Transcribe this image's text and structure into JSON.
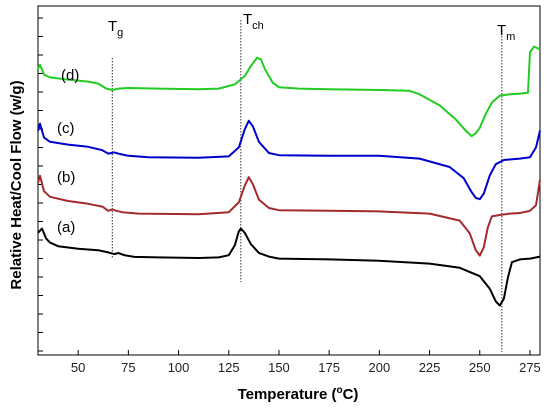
{
  "chart_data": {
    "type": "line",
    "xlabel": "Temperature (°C)",
    "xlabel_main": "Temperature (",
    "xlabel_unit_sup": "o",
    "xlabel_unit_rest": "C)",
    "ylabel": "Relative Heat/Cool Flow (w/g)",
    "xlim": [
      30,
      280
    ],
    "x_ticks": [
      "50",
      "75",
      "100",
      "125",
      "150",
      "175",
      "200",
      "225",
      "250",
      "275"
    ],
    "y_tick_labels": "none",
    "grid": false,
    "annotations": [
      {
        "text": "T",
        "sub": "g",
        "x": 67
      },
      {
        "text": "T",
        "sub": "ch",
        "x": 131
      },
      {
        "text": "T",
        "sub": "m",
        "x": 261
      }
    ],
    "series": [
      {
        "label": "(a)",
        "color": "#000000",
        "points": [
          [
            30,
            0.9
          ],
          [
            32,
            1.05
          ],
          [
            34,
            0.7
          ],
          [
            36,
            0.55
          ],
          [
            40,
            0.42
          ],
          [
            50,
            0.33
          ],
          [
            60,
            0.28
          ],
          [
            65,
            0.2
          ],
          [
            68,
            0.14
          ],
          [
            70,
            0.18
          ],
          [
            73,
            0.1
          ],
          [
            78,
            0.04
          ],
          [
            90,
            0.02
          ],
          [
            110,
            0.0
          ],
          [
            120,
            0.02
          ],
          [
            125,
            0.1
          ],
          [
            128,
            0.45
          ],
          [
            130,
            0.95
          ],
          [
            131,
            1.05
          ],
          [
            133,
            0.9
          ],
          [
            136,
            0.5
          ],
          [
            140,
            0.18
          ],
          [
            145,
            0.05
          ],
          [
            150,
            -0.02
          ],
          [
            175,
            -0.05
          ],
          [
            200,
            -0.1
          ],
          [
            225,
            -0.2
          ],
          [
            240,
            -0.35
          ],
          [
            250,
            -0.65
          ],
          [
            255,
            -1.1
          ],
          [
            258,
            -1.55
          ],
          [
            260,
            -1.7
          ],
          [
            262,
            -1.45
          ],
          [
            264,
            -0.7
          ],
          [
            266,
            -0.15
          ],
          [
            270,
            -0.05
          ],
          [
            275,
            -0.02
          ],
          [
            280,
            0.05
          ]
        ]
      },
      {
        "label": "(b)",
        "color": "#a52a2a",
        "points": [
          [
            30,
            0.9
          ],
          [
            31,
            1.15
          ],
          [
            33,
            0.6
          ],
          [
            36,
            0.4
          ],
          [
            45,
            0.25
          ],
          [
            55,
            0.15
          ],
          [
            62,
            0.05
          ],
          [
            65,
            -0.1
          ],
          [
            67,
            -0.05
          ],
          [
            69,
            -0.1
          ],
          [
            72,
            -0.15
          ],
          [
            80,
            -0.2
          ],
          [
            110,
            -0.22
          ],
          [
            125,
            -0.15
          ],
          [
            130,
            0.2
          ],
          [
            133,
            0.8
          ],
          [
            135,
            1.1
          ],
          [
            137,
            0.85
          ],
          [
            140,
            0.3
          ],
          [
            145,
            0.0
          ],
          [
            150,
            -0.08
          ],
          [
            175,
            -0.1
          ],
          [
            200,
            -0.12
          ],
          [
            225,
            -0.2
          ],
          [
            240,
            -0.45
          ],
          [
            245,
            -0.9
          ],
          [
            248,
            -1.5
          ],
          [
            250,
            -1.7
          ],
          [
            252,
            -1.4
          ],
          [
            254,
            -0.7
          ],
          [
            256,
            -0.3
          ],
          [
            260,
            -0.25
          ],
          [
            265,
            -0.2
          ],
          [
            270,
            -0.18
          ],
          [
            275,
            -0.1
          ],
          [
            278,
            0.1
          ],
          [
            280,
            1.0
          ]
        ]
      },
      {
        "label": "(c)",
        "color": "#0000cc",
        "points": [
          [
            30,
            0.8
          ],
          [
            31,
            1.05
          ],
          [
            33,
            0.55
          ],
          [
            36,
            0.4
          ],
          [
            45,
            0.3
          ],
          [
            55,
            0.22
          ],
          [
            62,
            0.1
          ],
          [
            65,
            -0.02
          ],
          [
            68,
            0.02
          ],
          [
            70,
            -0.02
          ],
          [
            75,
            -0.1
          ],
          [
            85,
            -0.15
          ],
          [
            110,
            -0.17
          ],
          [
            125,
            -0.12
          ],
          [
            130,
            0.2
          ],
          [
            133,
            0.85
          ],
          [
            135,
            1.15
          ],
          [
            137,
            0.95
          ],
          [
            140,
            0.4
          ],
          [
            145,
            0.0
          ],
          [
            150,
            -0.08
          ],
          [
            175,
            -0.1
          ],
          [
            200,
            -0.1
          ],
          [
            220,
            -0.2
          ],
          [
            235,
            -0.5
          ],
          [
            242,
            -0.9
          ],
          [
            246,
            -1.4
          ],
          [
            248,
            -1.6
          ],
          [
            250,
            -1.65
          ],
          [
            252,
            -1.45
          ],
          [
            255,
            -0.8
          ],
          [
            258,
            -0.4
          ],
          [
            262,
            -0.25
          ],
          [
            270,
            -0.2
          ],
          [
            275,
            -0.15
          ],
          [
            278,
            0.2
          ],
          [
            280,
            0.8
          ]
        ]
      },
      {
        "label": "(d)",
        "color": "#22cc22",
        "points": [
          [
            30,
            1.0
          ],
          [
            31,
            1.15
          ],
          [
            33,
            0.8
          ],
          [
            36,
            0.7
          ],
          [
            45,
            0.62
          ],
          [
            55,
            0.55
          ],
          [
            60,
            0.48
          ],
          [
            64,
            0.3
          ],
          [
            67,
            0.25
          ],
          [
            70,
            0.3
          ],
          [
            75,
            0.32
          ],
          [
            90,
            0.3
          ],
          [
            110,
            0.28
          ],
          [
            120,
            0.3
          ],
          [
            128,
            0.45
          ],
          [
            133,
            0.75
          ],
          [
            136,
            1.1
          ],
          [
            139,
            1.4
          ],
          [
            141,
            1.35
          ],
          [
            143,
            1.0
          ],
          [
            147,
            0.5
          ],
          [
            150,
            0.35
          ],
          [
            160,
            0.3
          ],
          [
            175,
            0.28
          ],
          [
            200,
            0.25
          ],
          [
            215,
            0.22
          ],
          [
            220,
            0.1
          ],
          [
            230,
            -0.3
          ],
          [
            238,
            -0.8
          ],
          [
            243,
            -1.2
          ],
          [
            246,
            -1.4
          ],
          [
            248,
            -1.3
          ],
          [
            250,
            -1.1
          ],
          [
            253,
            -0.6
          ],
          [
            256,
            -0.2
          ],
          [
            260,
            0.05
          ],
          [
            265,
            0.1
          ],
          [
            270,
            0.12
          ],
          [
            274,
            0.15
          ],
          [
            275,
            1.6
          ],
          [
            277,
            1.8
          ],
          [
            280,
            1.7
          ]
        ]
      }
    ]
  }
}
